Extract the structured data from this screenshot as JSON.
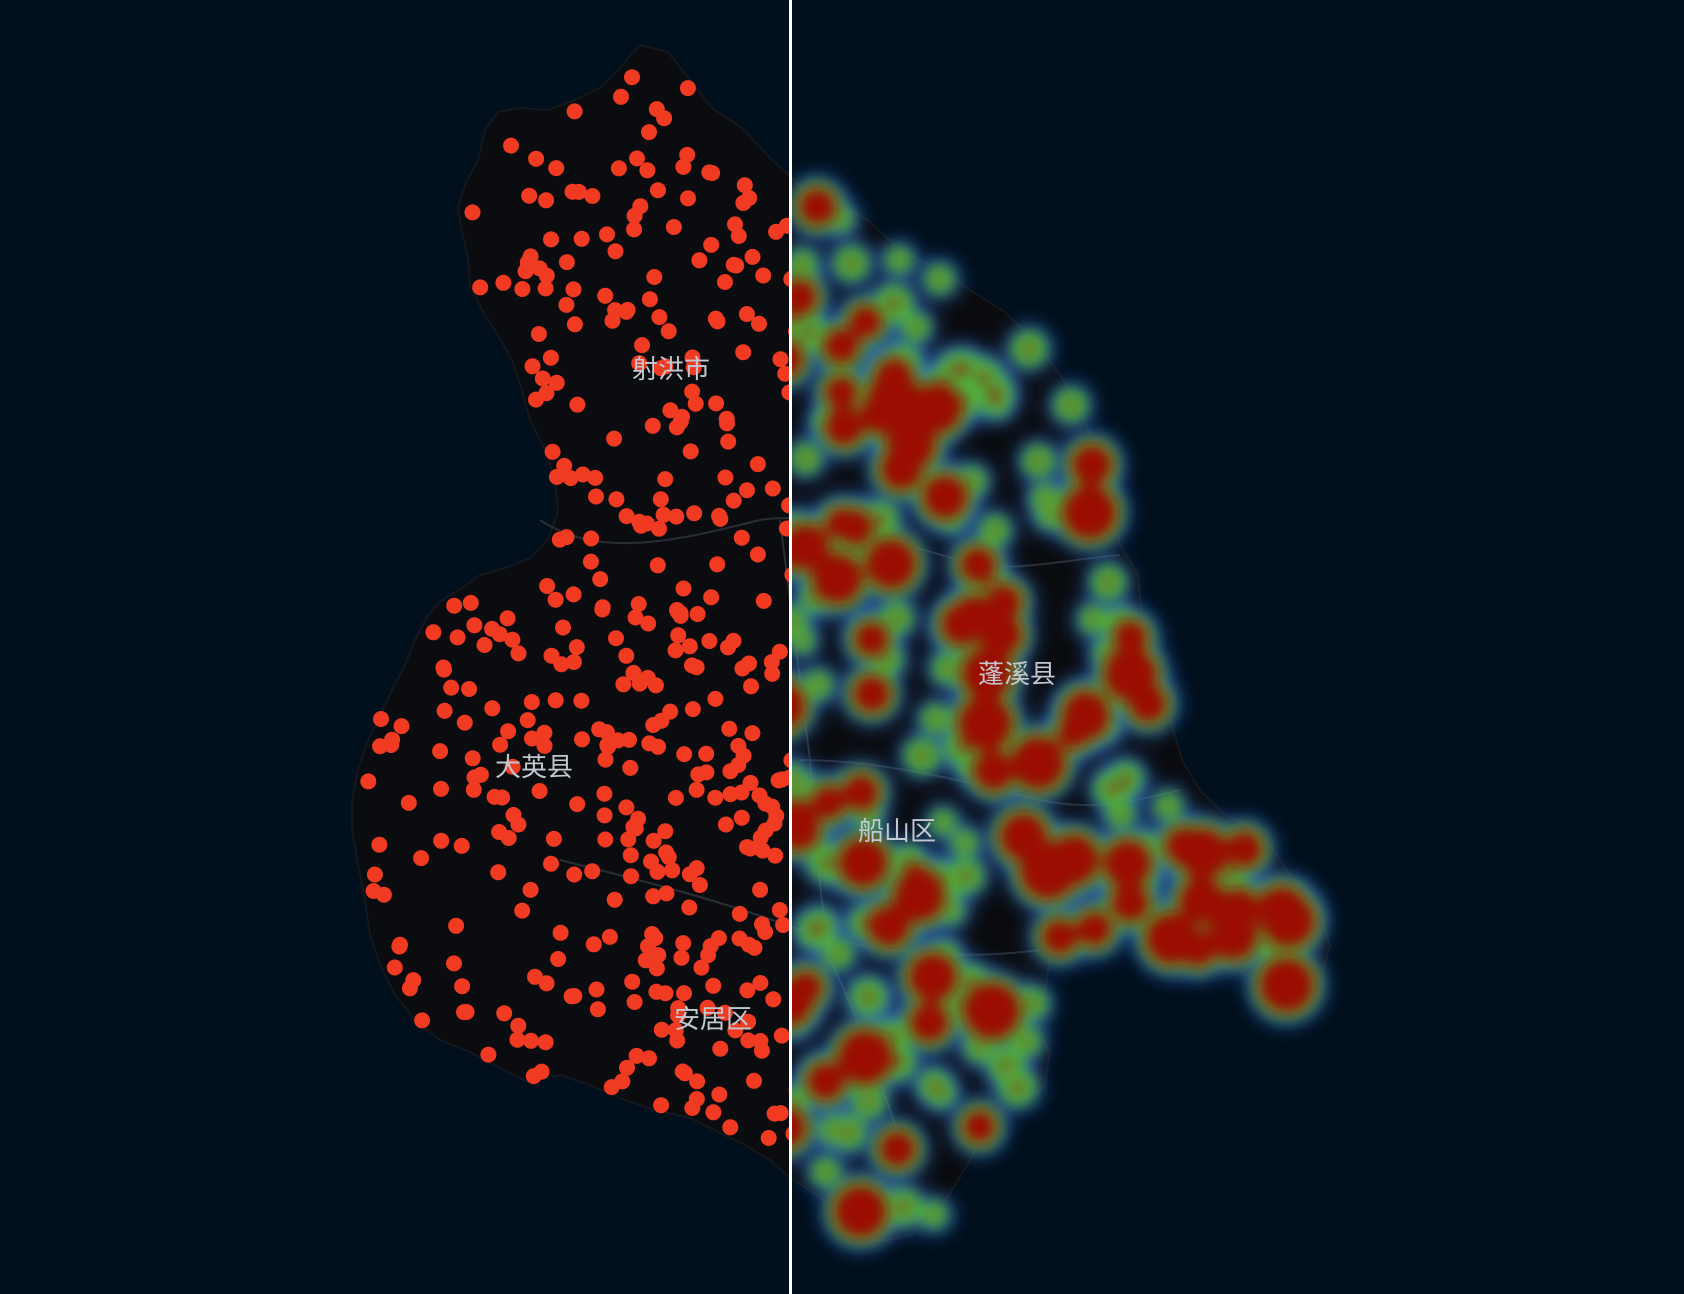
{
  "map": {
    "colors": {
      "background": "#020f1c",
      "land": "#0b0c0f",
      "district_border": "#2a2e34",
      "point": "#f03a22",
      "heat_low": "#2f6bd0",
      "heat_mid": "#4fb23a",
      "heat_high": "#9a0e06",
      "label": "#c3c9d1",
      "divider": "#ffffff"
    },
    "layers": {
      "left": "point-layer",
      "right": "heatmap-layer"
    },
    "labels": {
      "shehong": "射洪市",
      "daying": "大英县",
      "anju": "安居区",
      "pengxi": "蓬溪县",
      "chuanshan": "船山区"
    }
  }
}
